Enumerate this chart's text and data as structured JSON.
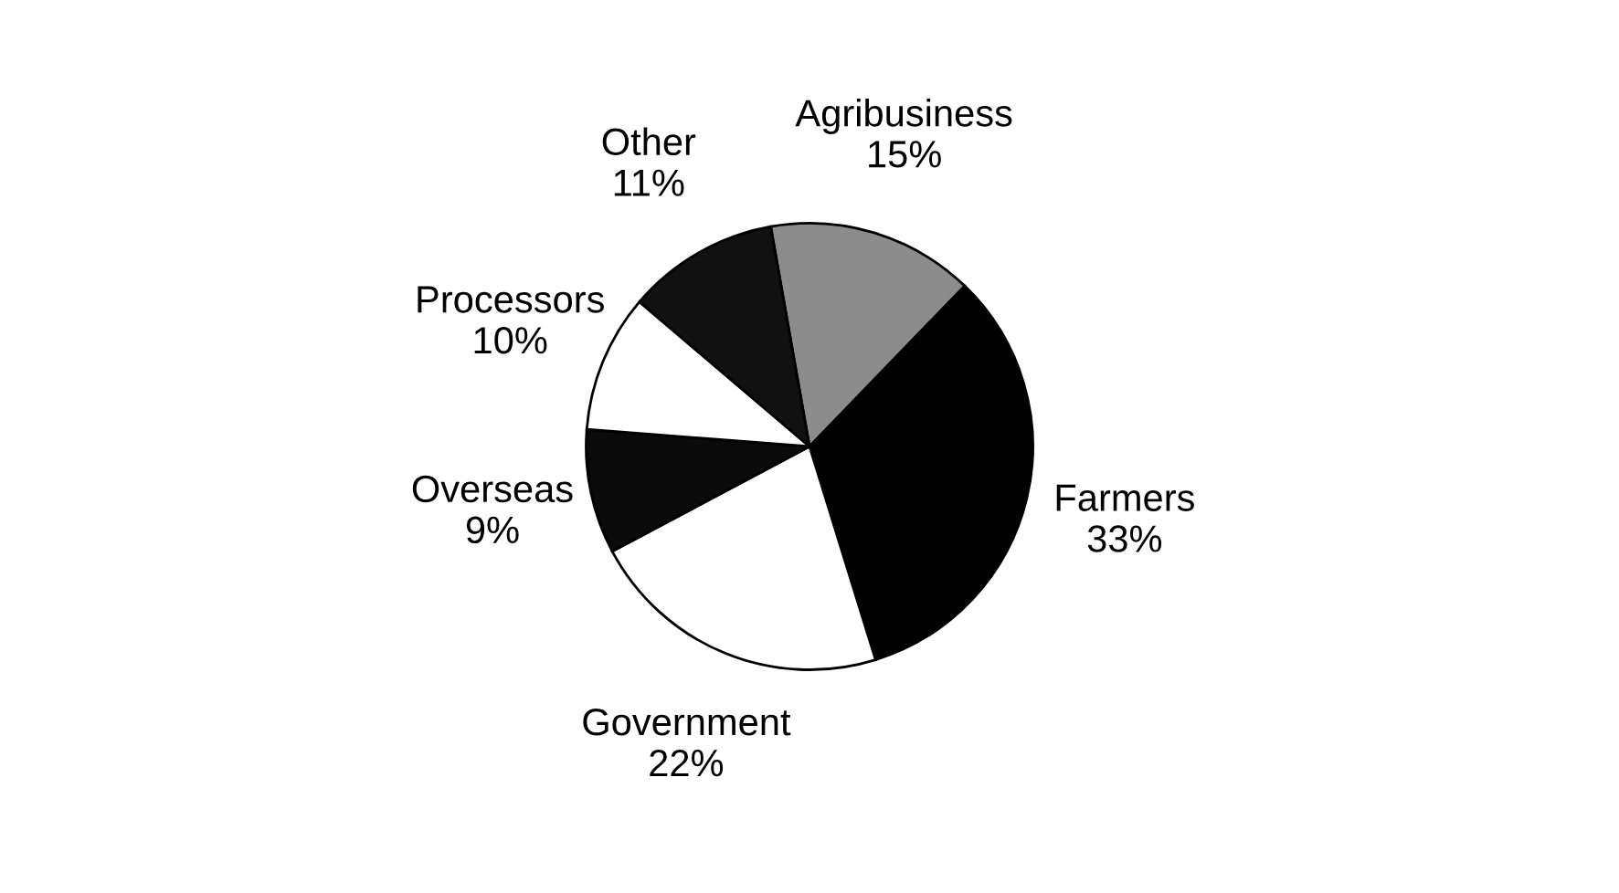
{
  "chart_data": {
    "type": "pie",
    "categories": [
      "Agribusiness",
      "Farmers",
      "Government",
      "Overseas",
      "Processors",
      "Other"
    ],
    "values": [
      15,
      33,
      22,
      9,
      10,
      11
    ],
    "value_labels": [
      "15%",
      "33%",
      "22%",
      "9%",
      "10%",
      "11%"
    ],
    "colors": [
      "#8c8c8c",
      "#000000",
      "#ffffff",
      "#0a0a0a",
      "#ffffff",
      "#111111"
    ],
    "legend": false
  }
}
